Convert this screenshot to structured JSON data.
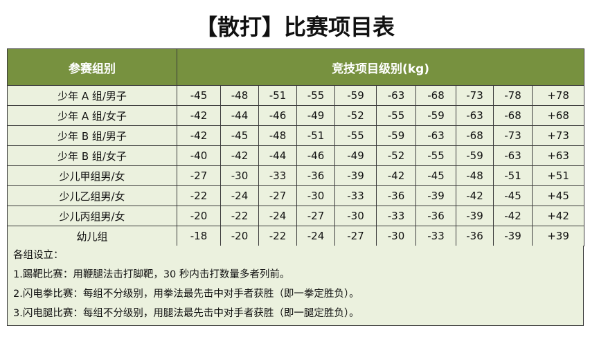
{
  "title": "【散打】比赛项目表",
  "header": {
    "group": "参赛组别",
    "weights": "竞技项目级别(kg)"
  },
  "rows": [
    {
      "group": "少年 A 组/男子",
      "values": [
        "-45",
        "-48",
        "-51",
        "-55",
        "-59",
        "-63",
        "-68",
        "-73",
        "-78",
        "+78"
      ]
    },
    {
      "group": "少年 A 组/女子",
      "values": [
        "-42",
        "-44",
        "-46",
        "-49",
        "-52",
        "-55",
        "-59",
        "-63",
        "-68",
        "+68"
      ]
    },
    {
      "group": "少年 B 组/男子",
      "values": [
        "-42",
        "-45",
        "-48",
        "-51",
        "-55",
        "-59",
        "-63",
        "-68",
        "-73",
        "+73"
      ]
    },
    {
      "group": "少年 B 组/女子",
      "values": [
        "-40",
        "-42",
        "-44",
        "-46",
        "-49",
        "-52",
        "-55",
        "-59",
        "-63",
        "+63"
      ]
    },
    {
      "group": "少儿甲组男/女",
      "values": [
        "-27",
        "-30",
        "-33",
        "-36",
        "-39",
        "-42",
        "-45",
        "-48",
        "-51",
        "+51"
      ]
    },
    {
      "group": "少儿乙组男/女",
      "values": [
        "-22",
        "-24",
        "-27",
        "-30",
        "-33",
        "-36",
        "-39",
        "-42",
        "-45",
        "+45"
      ]
    },
    {
      "group": "少儿丙组男/女",
      "values": [
        "-20",
        "-22",
        "-24",
        "-27",
        "-30",
        "-33",
        "-36",
        "-39",
        "-42",
        "+42"
      ]
    },
    {
      "group": "幼儿组",
      "values": [
        "-18",
        "-20",
        "-22",
        "-24",
        "-27",
        "-30",
        "-33",
        "-36",
        "-39",
        "+39"
      ]
    }
  ],
  "notes": [
    "各组设立：",
    "1.踢靶比赛：用鞭腿法击打脚靶，30 秒内击打数量多者列前。",
    "2.闪电拳比赛：每组不分级别，用拳法最先击中对手者获胜（即一拳定胜负）。",
    "3.闪电腿比赛：每组不分级别，用腿法最先击中对手者获胜（即一腿定胜负）。"
  ],
  "colors": {
    "header": "#77913f",
    "cell": "#ebf1de"
  }
}
